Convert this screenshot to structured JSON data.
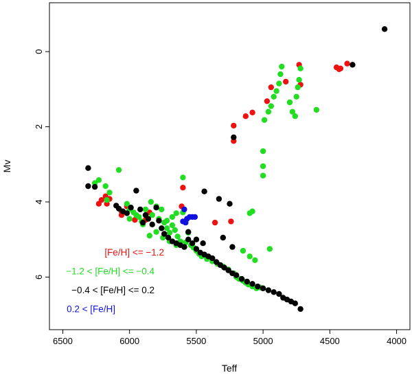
{
  "chart_data": {
    "type": "scatter",
    "title": "",
    "xlabel": "Teff",
    "ylabel": "Mv",
    "xlim": [
      6600,
      3900
    ],
    "ylim": [
      7.4,
      -1.3
    ],
    "x_reversed": true,
    "y_reversed": true,
    "grid": false,
    "legend_position": "bottom-left",
    "x_ticks": [
      6500,
      6000,
      5500,
      5000,
      4500,
      4000
    ],
    "x_tick_labels": [
      "6500",
      "6000",
      "5500",
      "5000",
      "4500",
      "4000"
    ],
    "y_ticks": [
      0,
      2,
      4,
      6
    ],
    "y_tick_labels": [
      "0",
      "2",
      "4",
      "6"
    ],
    "series": [
      {
        "name": "[Fe/H] <= -1.2",
        "color": "#ee1111",
        "points": [
          [
            6180,
            3.85
          ],
          [
            6210,
            3.95
          ],
          [
            6170,
            4.05
          ],
          [
            6230,
            4.05
          ],
          [
            6150,
            3.92
          ],
          [
            6020,
            4.12
          ],
          [
            6060,
            4.25
          ],
          [
            6060,
            4.35
          ],
          [
            5960,
            4.48
          ],
          [
            5880,
            4.48
          ],
          [
            5850,
            4.28
          ],
          [
            5600,
            3.62
          ],
          [
            5610,
            4.12
          ],
          [
            5360,
            4.55
          ],
          [
            5240,
            4.52
          ],
          [
            5220,
            1.97
          ],
          [
            5220,
            2.38
          ],
          [
            5130,
            1.72
          ],
          [
            5080,
            1.62
          ],
          [
            4970,
            1.32
          ],
          [
            4940,
            0.95
          ],
          [
            4830,
            0.8
          ],
          [
            4720,
            0.88
          ],
          [
            4730,
            0.35
          ],
          [
            4450,
            0.42
          ],
          [
            4430,
            0.47
          ],
          [
            4420,
            0.45
          ],
          [
            4370,
            0.32
          ]
        ]
      },
      {
        "name": "-1.2 < [Fe/H] <= -0.4",
        "color": "#22dd22",
        "points": [
          [
            6080,
            3.15
          ],
          [
            6230,
            3.42
          ],
          [
            6260,
            3.5
          ],
          [
            6180,
            3.58
          ],
          [
            6150,
            3.75
          ],
          [
            6170,
            3.95
          ],
          [
            6000,
            4.2
          ],
          [
            5970,
            4.28
          ],
          [
            5930,
            4.4
          ],
          [
            5910,
            4.52
          ],
          [
            5840,
            4.0
          ],
          [
            5800,
            4.12
          ],
          [
            5760,
            4.2
          ],
          [
            5830,
            4.35
          ],
          [
            5780,
            4.45
          ],
          [
            5740,
            4.55
          ],
          [
            5720,
            4.7
          ],
          [
            5700,
            4.82
          ],
          [
            5680,
            4.62
          ],
          [
            5660,
            4.75
          ],
          [
            5640,
            4.92
          ],
          [
            5620,
            5.05
          ],
          [
            5600,
            3.35
          ],
          [
            5600,
            4.28
          ],
          [
            5580,
            5.08
          ],
          [
            5560,
            4.82
          ],
          [
            5540,
            5.15
          ],
          [
            5520,
            5.22
          ],
          [
            5500,
            5.3
          ],
          [
            5480,
            5.38
          ],
          [
            5460,
            5.45
          ],
          [
            5420,
            5.52
          ],
          [
            5380,
            5.58
          ],
          [
            5340,
            5.65
          ],
          [
            5300,
            5.72
          ],
          [
            5260,
            5.8
          ],
          [
            5220,
            5.9
          ],
          [
            5200,
            6.0
          ],
          [
            5180,
            6.05
          ],
          [
            5150,
            6.1
          ],
          [
            5130,
            6.15
          ],
          [
            5110,
            6.2
          ],
          [
            5080,
            6.25
          ],
          [
            5050,
            6.3
          ],
          [
            5020,
            6.28
          ],
          [
            5000,
            6.3
          ],
          [
            5150,
            5.3
          ],
          [
            5100,
            5.45
          ],
          [
            5060,
            5.55
          ],
          [
            5080,
            4.25
          ],
          [
            5100,
            4.3
          ],
          [
            4950,
            5.25
          ],
          [
            5000,
            3.05
          ],
          [
            5000,
            3.3
          ],
          [
            5000,
            2.65
          ],
          [
            4990,
            1.82
          ],
          [
            4960,
            1.6
          ],
          [
            4940,
            1.45
          ],
          [
            4920,
            1.2
          ],
          [
            4900,
            1.05
          ],
          [
            4880,
            0.85
          ],
          [
            4870,
            0.6
          ],
          [
            4860,
            0.4
          ],
          [
            4800,
            1.35
          ],
          [
            4780,
            1.6
          ],
          [
            4760,
            1.72
          ],
          [
            4750,
            1.2
          ],
          [
            4740,
            0.95
          ],
          [
            4730,
            0.75
          ],
          [
            4720,
            0.45
          ],
          [
            4600,
            1.55
          ],
          [
            5850,
            4.9
          ],
          [
            5800,
            4.8
          ],
          [
            5900,
            4.6
          ],
          [
            5950,
            4.35
          ],
          [
            5750,
            4.95
          ],
          [
            5700,
            5.05
          ],
          [
            5650,
            5.15
          ],
          [
            5720,
            4.5
          ],
          [
            5680,
            4.4
          ],
          [
            5650,
            4.3
          ],
          [
            6000,
            4.45
          ],
          [
            6020,
            4.05
          ],
          [
            5880,
            4.2
          ]
        ]
      },
      {
        "name": "-0.4 < [Fe/H] <= 0.2",
        "color": "#000000",
        "points": [
          [
            6310,
            3.1
          ],
          [
            6310,
            3.58
          ],
          [
            6260,
            3.6
          ],
          [
            6100,
            4.1
          ],
          [
            6080,
            4.18
          ],
          [
            6050,
            4.25
          ],
          [
            6020,
            4.3
          ],
          [
            5990,
            4.15
          ],
          [
            5950,
            3.7
          ],
          [
            5920,
            4.2
          ],
          [
            5880,
            4.35
          ],
          [
            5860,
            4.45
          ],
          [
            5830,
            4.6
          ],
          [
            5800,
            4.15
          ],
          [
            5780,
            4.5
          ],
          [
            5760,
            4.7
          ],
          [
            5740,
            4.85
          ],
          [
            5710,
            4.95
          ],
          [
            5680,
            5.05
          ],
          [
            5650,
            5.1
          ],
          [
            5620,
            5.15
          ],
          [
            5590,
            5.2
          ],
          [
            5560,
            5.0
          ],
          [
            5530,
            5.1
          ],
          [
            5500,
            5.25
          ],
          [
            5470,
            5.35
          ],
          [
            5440,
            5.4
          ],
          [
            5410,
            5.45
          ],
          [
            5380,
            5.5
          ],
          [
            5350,
            5.6
          ],
          [
            5320,
            5.68
          ],
          [
            5290,
            5.75
          ],
          [
            5260,
            5.82
          ],
          [
            5230,
            5.9
          ],
          [
            5200,
            5.95
          ],
          [
            5160,
            6.05
          ],
          [
            5120,
            6.12
          ],
          [
            5080,
            6.18
          ],
          [
            5040,
            6.25
          ],
          [
            5000,
            6.3
          ],
          [
            4960,
            6.35
          ],
          [
            4920,
            6.4
          ],
          [
            4880,
            6.45
          ],
          [
            4850,
            6.55
          ],
          [
            4820,
            6.6
          ],
          [
            4790,
            6.65
          ],
          [
            4760,
            6.7
          ],
          [
            4720,
            6.85
          ],
          [
            5440,
            3.72
          ],
          [
            5330,
            3.92
          ],
          [
            5250,
            4.05
          ],
          [
            5300,
            4.95
          ],
          [
            5230,
            5.2
          ],
          [
            5220,
            2.28
          ],
          [
            4330,
            0.35
          ],
          [
            4090,
            -0.6
          ],
          [
            5560,
            4.8
          ],
          [
            5500,
            5.0
          ],
          [
            5450,
            5.1
          ],
          [
            5900,
            4.55
          ]
        ]
      },
      {
        "name": "0.2 < [Fe/H]",
        "color": "#1111dd",
        "points": [
          [
            5590,
            4.2
          ],
          [
            5570,
            4.45
          ],
          [
            5550,
            4.4
          ],
          [
            5530,
            4.4
          ],
          [
            5510,
            4.4
          ],
          [
            5600,
            4.52
          ],
          [
            5580,
            4.55
          ]
        ]
      }
    ],
    "legend": [
      {
        "prefix": "",
        "label": "[Fe/H] <= −1.2",
        "color": "#ee1111"
      },
      {
        "prefix": "",
        "label": "−1.2 < [Fe/H] <= −0.4",
        "color": "#22dd22"
      },
      {
        "prefix": "",
        "label": "−0.4 < [Fe/H] <=  0.2",
        "color": "#000000"
      },
      {
        "prefix": "",
        "label": "0.2 < [Fe/H]",
        "color": "#1111dd"
      }
    ]
  }
}
